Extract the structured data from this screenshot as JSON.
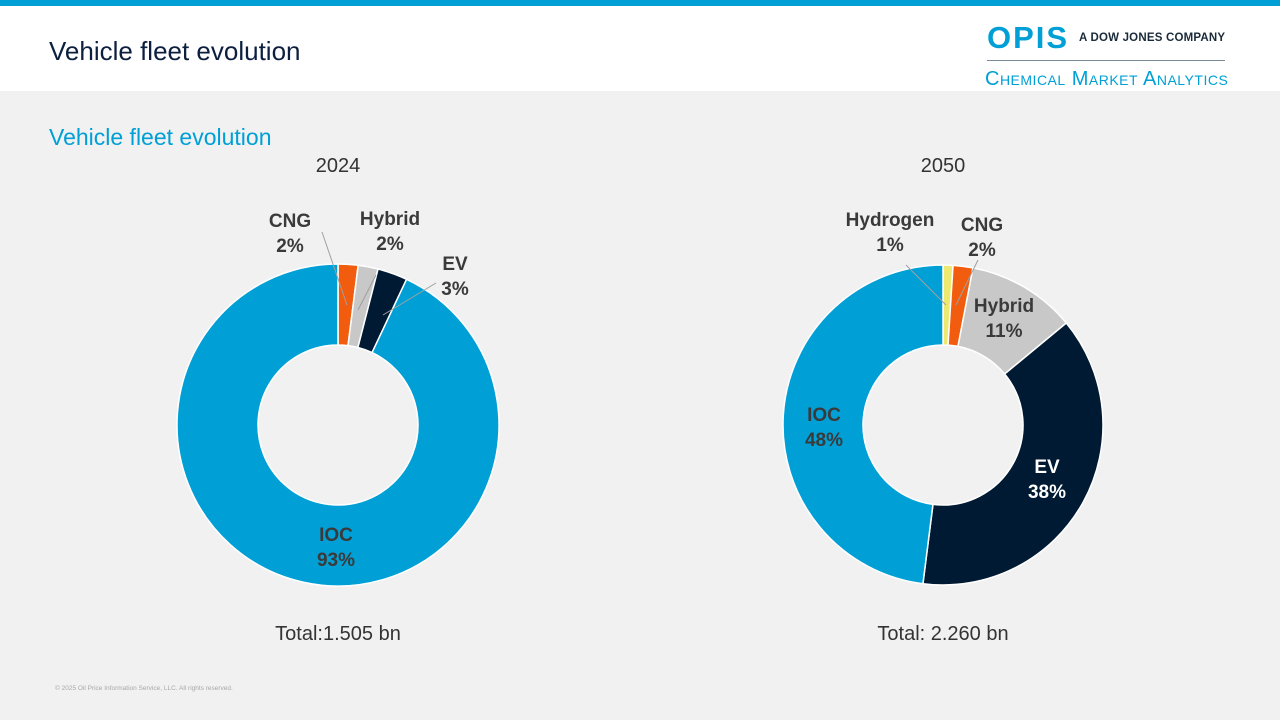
{
  "header": {
    "title": "Vehicle fleet evolution"
  },
  "logo": {
    "brand": "OPIS",
    "tagline": "A DOW JONES COMPANY",
    "division": "Chemical Market Analytics",
    "color": "#00a0d6"
  },
  "subtitle": "Vehicle fleet evolution",
  "chart_data": [
    {
      "type": "pie",
      "title": "2024",
      "subtitle": "Total:1.505 bn",
      "categories": [
        "CNG",
        "Hybrid",
        "EV",
        "IOC"
      ],
      "values": [
        2,
        2,
        3,
        93
      ],
      "labels": [
        "2%",
        "2%",
        "3%",
        "93%"
      ],
      "colors": [
        "#f25c0e",
        "#c8c8c8",
        "#001a33",
        "#00a0d6"
      ],
      "style": "donut"
    },
    {
      "type": "pie",
      "title": "2050",
      "subtitle": "Total: 2.260 bn",
      "categories": [
        "Hydrogen",
        "CNG",
        "Hybrid",
        "EV",
        "IOC"
      ],
      "values": [
        1,
        2,
        11,
        38,
        48
      ],
      "labels": [
        "1%",
        "2%",
        "11%",
        "38%",
        "48%"
      ],
      "colors": [
        "#ede870",
        "#f25c0e",
        "#c8c8c8",
        "#001a33",
        "#00a0d6"
      ],
      "style": "donut"
    }
  ],
  "footer": "© 2025 Oil Price Information Service, LLC. All rights reserved."
}
